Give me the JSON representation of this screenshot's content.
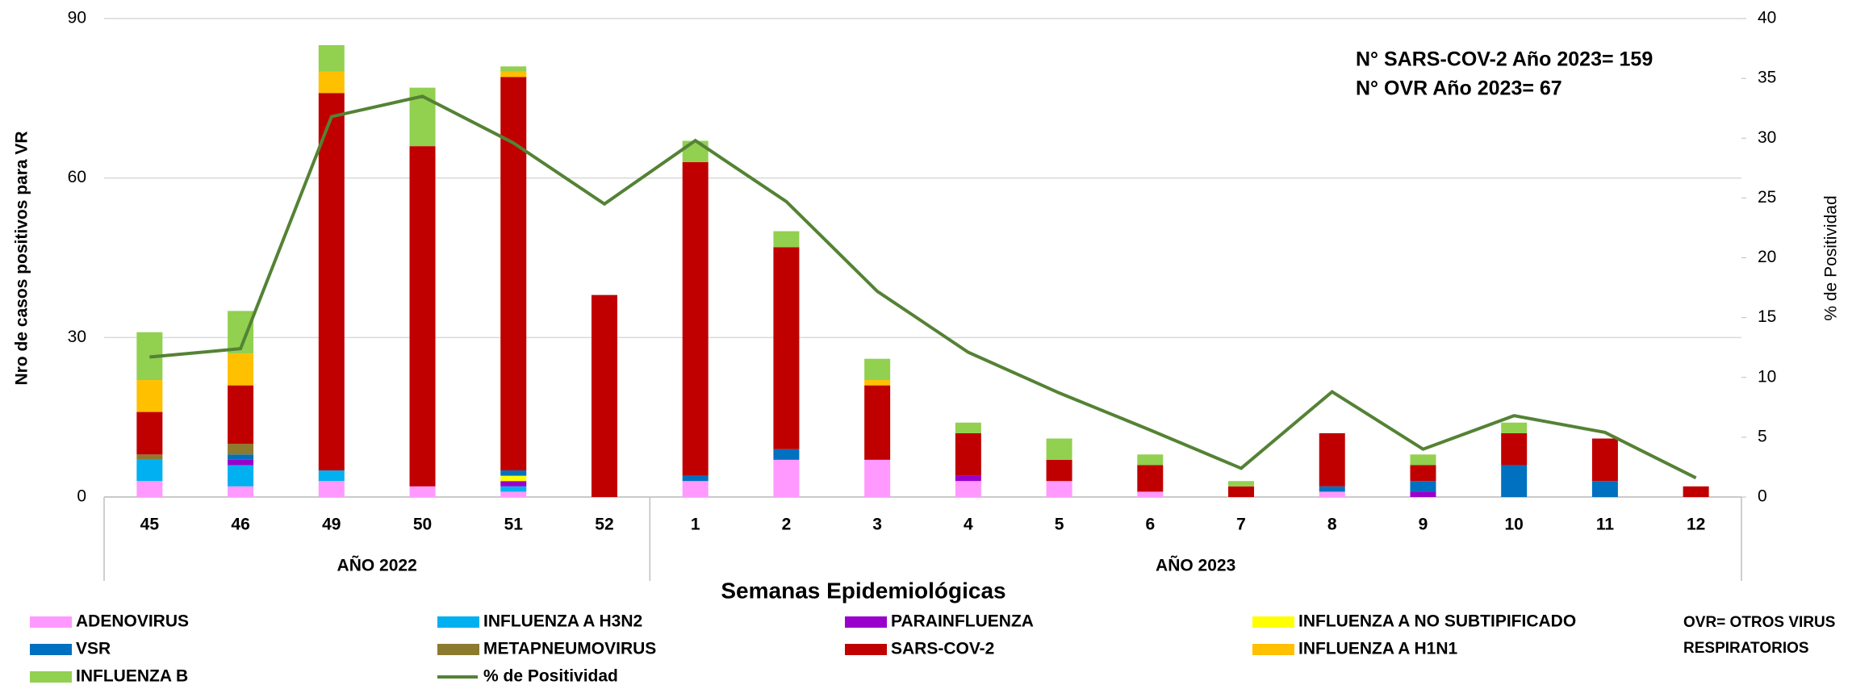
{
  "chart_data": {
    "type": "bar",
    "stacked": true,
    "x_title": "Semanas Epidemiológicas",
    "y_title": "Nro de casos positivos para VR",
    "y2_title": "% de Positividad",
    "categories": [
      "45",
      "46",
      "49",
      "50",
      "51",
      "52",
      "1",
      "2",
      "3",
      "4",
      "5",
      "6",
      "7",
      "8",
      "9",
      "10",
      "11",
      "12"
    ],
    "groups": [
      "AÑO 2022",
      "AÑO 2023"
    ],
    "annotations": [
      "N° SARS-COV-2 Año 2023= 159",
      "N° OVR Año 2023= 67"
    ],
    "note": "OVR=  OTROS VIRUS RESPIRATORIOS",
    "ylim": [
      0,
      90
    ],
    "yticks": [
      0,
      30,
      60,
      90
    ],
    "y2lim": [
      0,
      40
    ],
    "y2ticks": [
      0,
      5,
      10,
      15,
      20,
      25,
      30,
      35,
      40
    ],
    "grid": true,
    "series": [
      {
        "name": "ADENOVIRUS",
        "color": "#ff99ff",
        "values": [
          3,
          2,
          3,
          2,
          1,
          0,
          3,
          7,
          7,
          3,
          3,
          1,
          0,
          1,
          0,
          0,
          0,
          0
        ]
      },
      {
        "name": "INFLUENZA A H3N2",
        "color": "#00b0f0",
        "values": [
          4,
          4,
          2,
          0,
          1,
          0,
          0,
          0,
          0,
          0,
          0,
          0,
          0,
          0,
          0,
          0,
          0,
          0
        ]
      },
      {
        "name": "PARAINFLUENZA",
        "color": "#9900cc",
        "values": [
          0,
          1,
          0,
          0,
          1,
          0,
          0,
          0,
          0,
          1,
          0,
          0,
          0,
          0,
          1,
          0,
          0,
          0
        ]
      },
      {
        "name": "INFLUENZA A NO SUBTIPIFICADO",
        "color": "#ffff00",
        "values": [
          0,
          0,
          0,
          0,
          1,
          0,
          0,
          0,
          0,
          0,
          0,
          0,
          0,
          0,
          0,
          0,
          0,
          0
        ]
      },
      {
        "name": "VSR",
        "color": "#0070c0",
        "values": [
          0,
          1,
          0,
          0,
          1,
          0,
          1,
          2,
          0,
          0,
          0,
          0,
          0,
          1,
          2,
          6,
          3,
          0
        ]
      },
      {
        "name": "METAPNEUMOVIRUS",
        "color": "#8c7a2e",
        "values": [
          1,
          2,
          0,
          0,
          0,
          0,
          0,
          0,
          0,
          0,
          0,
          0,
          0,
          0,
          0,
          0,
          0,
          0
        ]
      },
      {
        "name": "SARS-COV-2",
        "color": "#c00000",
        "values": [
          8,
          11,
          71,
          64,
          74,
          38,
          59,
          38,
          14,
          8,
          4,
          5,
          2,
          10,
          3,
          6,
          8,
          2
        ]
      },
      {
        "name": "INFLUENZA A H1N1",
        "color": "#ffc000",
        "values": [
          6,
          6,
          4,
          0,
          1,
          0,
          0,
          0,
          1,
          0,
          0,
          0,
          0,
          0,
          0,
          0,
          0,
          0
        ]
      },
      {
        "name": "INFLUENZA B",
        "color": "#92d050",
        "values": [
          9,
          8,
          5,
          11,
          1,
          0,
          4,
          3,
          4,
          2,
          4,
          2,
          1,
          0,
          2,
          2,
          0,
          0
        ]
      },
      {
        "name": "% de Positividad",
        "color": "#548235",
        "type": "line",
        "axis": "y2",
        "values": [
          11.7,
          12.4,
          31.8,
          33.5,
          29.6,
          24.5,
          29.8,
          24.7,
          17.2,
          12.1,
          8.7,
          5.6,
          2.4,
          8.8,
          4.0,
          6.8,
          5.4,
          1.6
        ]
      }
    ]
  }
}
